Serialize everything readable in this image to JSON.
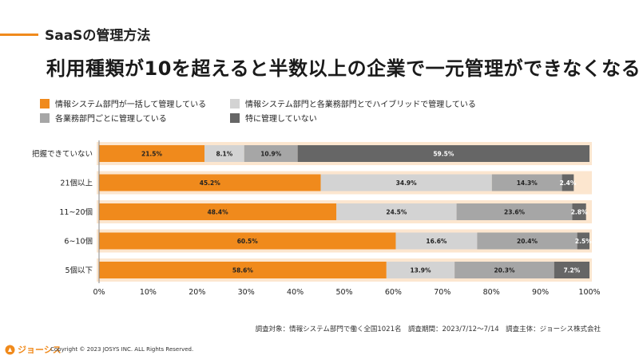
{
  "header": {
    "section_title": "SaaSの管理方法",
    "main_title": "利用種類が10を超えると半数以上の企業で一元管理ができなくなる"
  },
  "legend": [
    {
      "label": "情報システム部門が一括して管理している",
      "color": "#F08A1C"
    },
    {
      "label": "情報システム部門と各業務部門とでハイブリッドで管理している",
      "color": "#D3D3D3"
    },
    {
      "label": "各業務部門ごとに管理している",
      "color": "#A6A6A6"
    },
    {
      "label": "特に管理していない",
      "color": "#666666"
    }
  ],
  "chart_data": {
    "type": "bar",
    "orientation": "horizontal",
    "stacked": true,
    "categories": [
      "把握できていない",
      "21個以上",
      "11~20個",
      "6~10個",
      "5個以下"
    ],
    "series": [
      {
        "name": "情報システム部門が一括して管理している",
        "color": "#F08A1C",
        "values": [
          21.5,
          45.2,
          48.4,
          60.5,
          58.6
        ]
      },
      {
        "name": "情報システム部門と各業務部門とでハイブリッドで管理している",
        "color": "#D3D3D3",
        "values": [
          8.1,
          34.9,
          24.5,
          16.6,
          13.9
        ]
      },
      {
        "name": "各業務部門ごとに管理している",
        "color": "#A6A6A6",
        "values": [
          10.9,
          14.3,
          23.6,
          20.4,
          20.3
        ]
      },
      {
        "name": "特に管理していない",
        "color": "#666666",
        "values": [
          59.5,
          2.4,
          2.8,
          2.5,
          7.2
        ]
      }
    ],
    "x_ticks": [
      "0%",
      "10%",
      "20%",
      "30%",
      "40%",
      "50%",
      "60%",
      "70%",
      "80%",
      "90%",
      "100%"
    ],
    "xlim": [
      0,
      100
    ],
    "grid": false,
    "legend_position": "top"
  },
  "footnote": "調査対象：情報システム部門で働く全国1021名　調査期間：2023/7/12〜7/14　調査主体：ジョーシス株式会社",
  "footer": {
    "logo_text": "ジョーシス",
    "copyright": "Copyright © 2023 JOSYS INC. ALL Rights Reserved."
  }
}
